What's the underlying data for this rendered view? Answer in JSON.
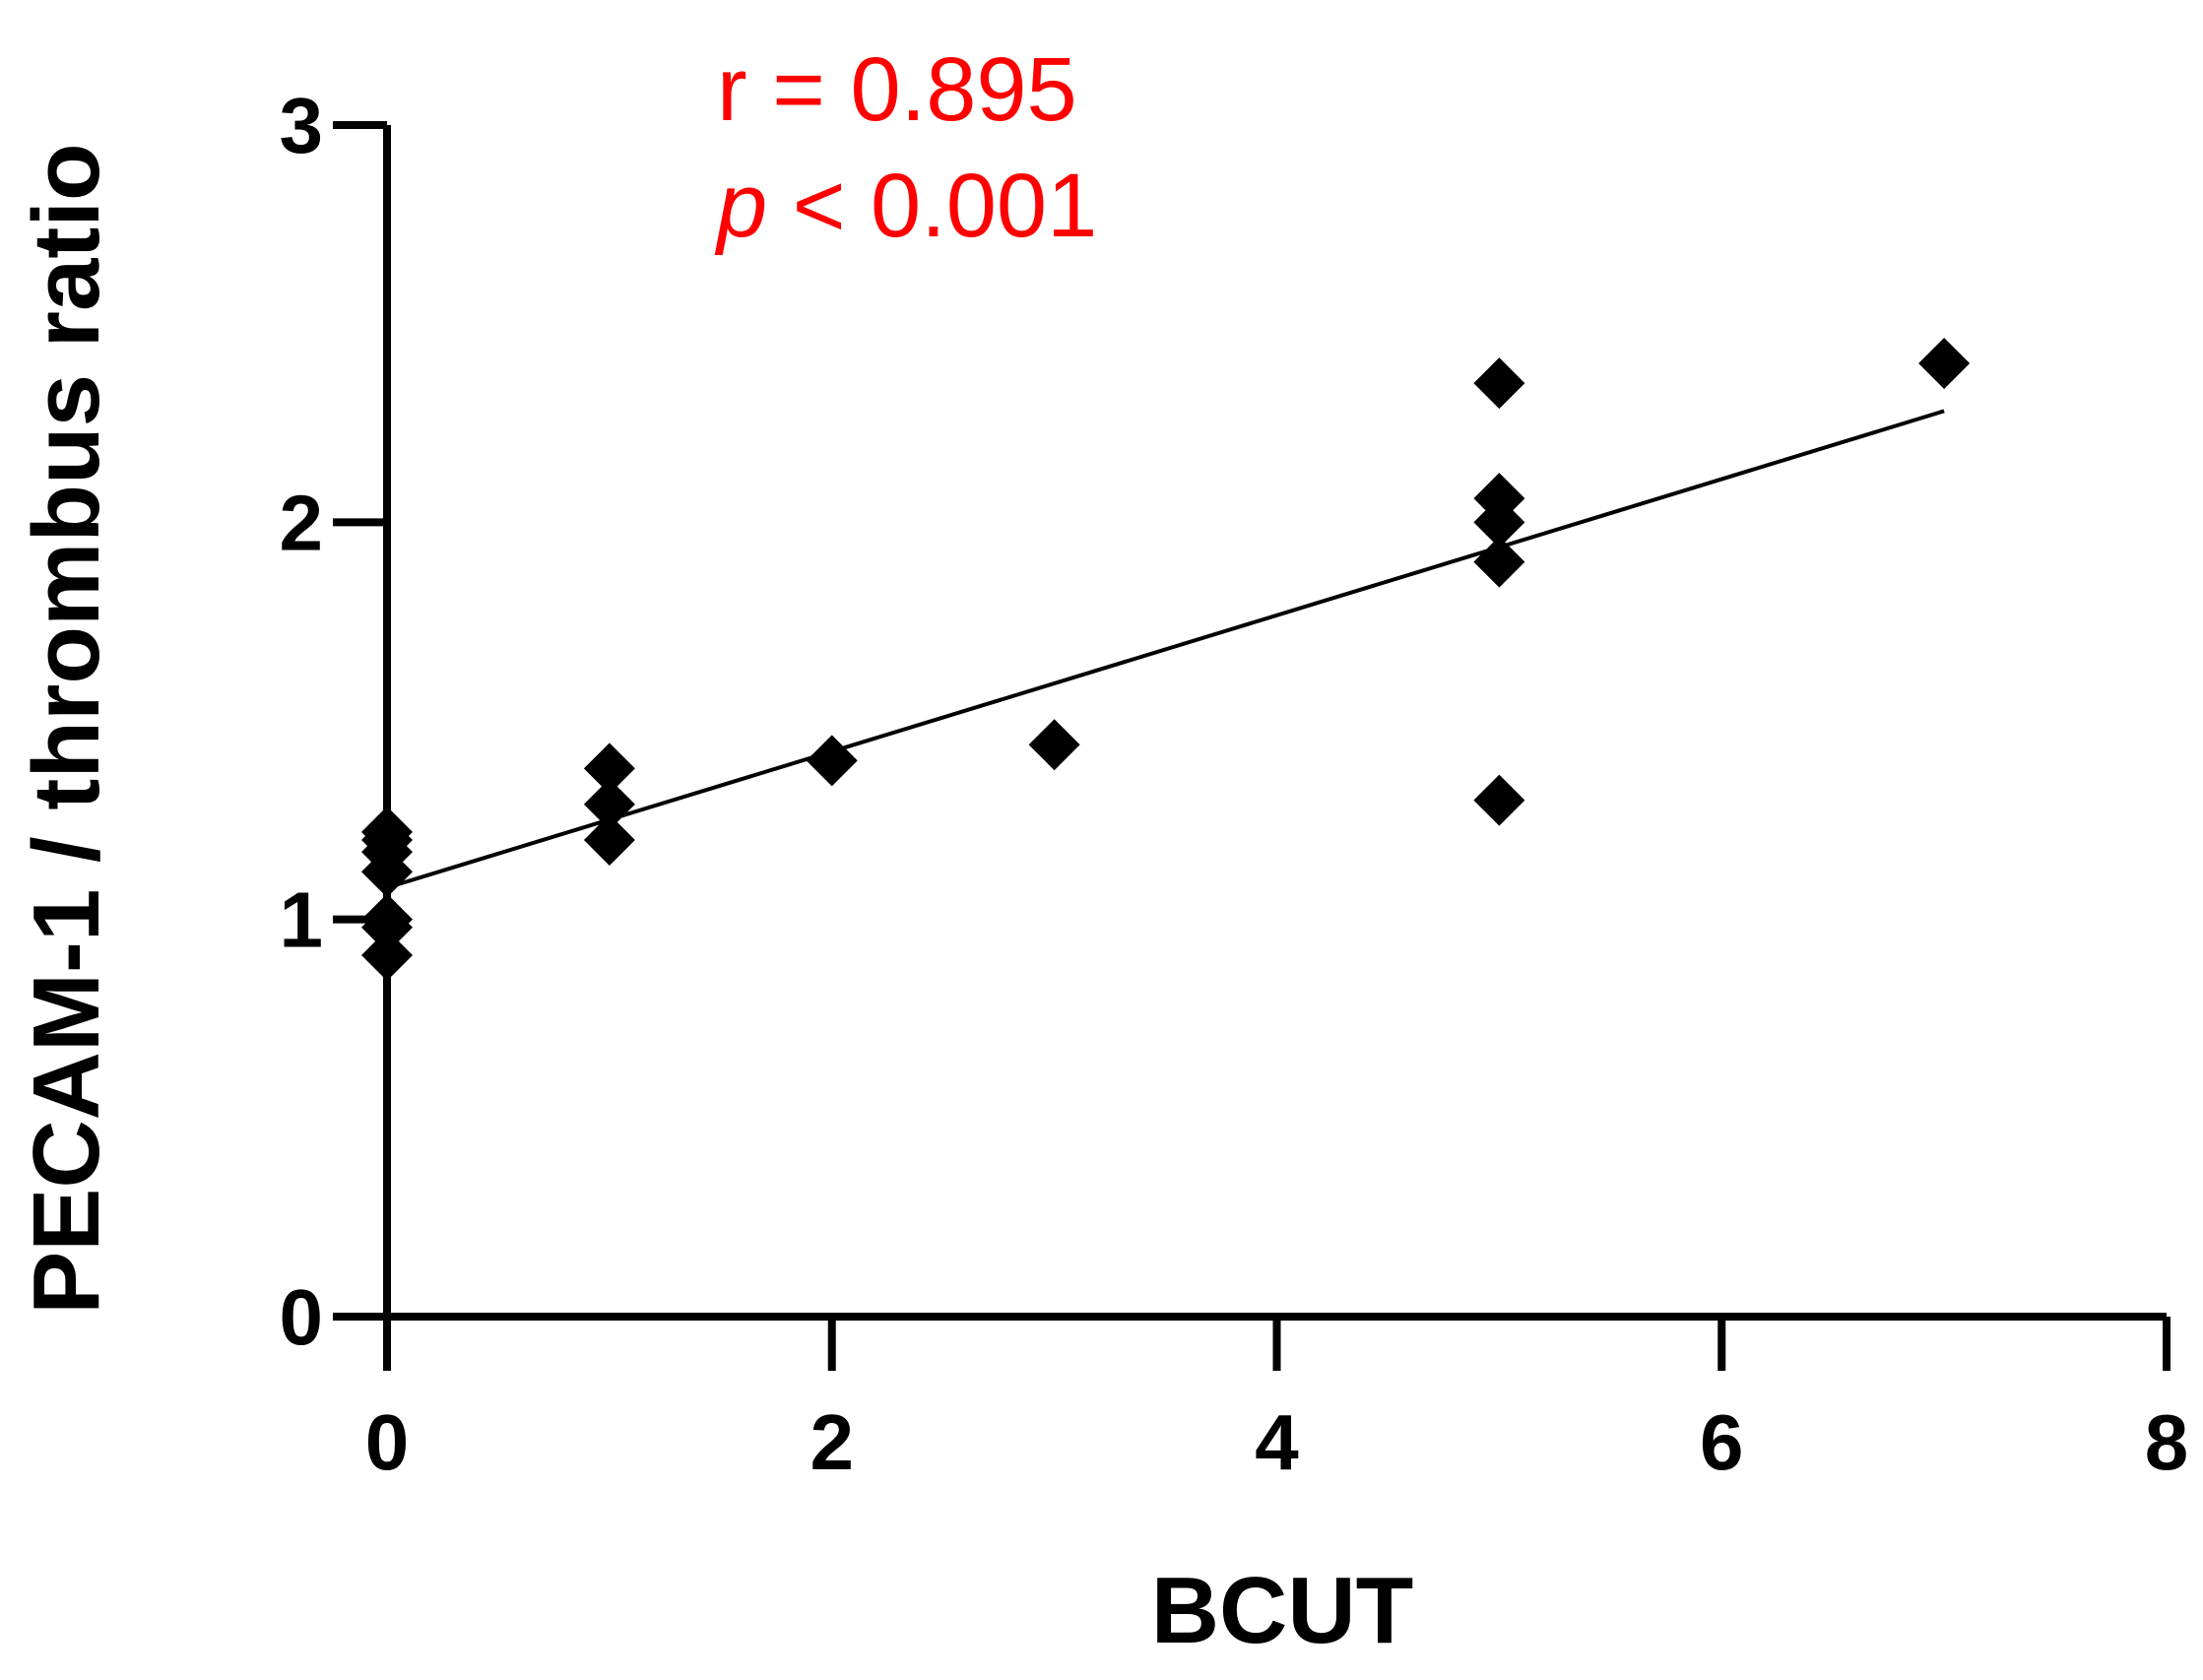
{
  "chart_data": {
    "type": "scatter",
    "title": "",
    "xlabel": "BCUT",
    "ylabel": "PECAM-1 / thrombus ratio",
    "xlim": [
      0,
      8
    ],
    "ylim": [
      0,
      3
    ],
    "x_ticks": [
      "0",
      "2",
      "4",
      "6",
      "8"
    ],
    "y_ticks": [
      "0",
      "1",
      "2",
      "3"
    ],
    "grid": false,
    "marker": "diamond",
    "marker_color": "#000000",
    "points": [
      {
        "x": 0,
        "y": 0.91
      },
      {
        "x": 0,
        "y": 0.98
      },
      {
        "x": 0,
        "y": 1.0
      },
      {
        "x": 0,
        "y": 1.12
      },
      {
        "x": 0,
        "y": 1.17
      },
      {
        "x": 0,
        "y": 1.2
      },
      {
        "x": 0,
        "y": 1.22
      },
      {
        "x": 1,
        "y": 1.2
      },
      {
        "x": 1,
        "y": 1.29
      },
      {
        "x": 1,
        "y": 1.38
      },
      {
        "x": 2,
        "y": 1.4
      },
      {
        "x": 3,
        "y": 1.44
      },
      {
        "x": 5,
        "y": 1.3
      },
      {
        "x": 5,
        "y": 1.9
      },
      {
        "x": 5,
        "y": 2.0
      },
      {
        "x": 5,
        "y": 2.06
      },
      {
        "x": 5,
        "y": 2.35
      },
      {
        "x": 7,
        "y": 2.4
      }
    ],
    "fit_line": {
      "x": [
        0,
        7
      ],
      "y": [
        1.08,
        2.28
      ]
    },
    "annotations": {
      "r_text": "r = 0.895",
      "p_symbol": "p",
      "p_rest": " < 0.001",
      "color": "#ff0000"
    }
  }
}
